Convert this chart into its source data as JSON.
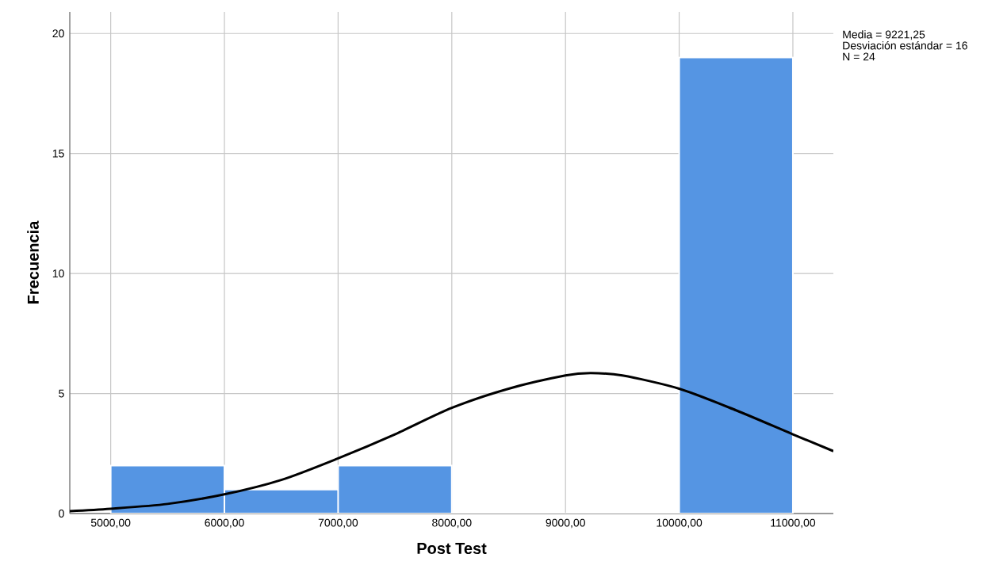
{
  "chart_data": {
    "type": "histogram",
    "xlabel": "Post Test",
    "ylabel": "Frecuencia",
    "bins": [
      5000,
      6000,
      7000,
      8000,
      9000,
      10000,
      11000
    ],
    "values": [
      2,
      1,
      2,
      0,
      0,
      19
    ],
    "color": "#5595e3",
    "series": [
      {
        "type": "line",
        "color": "#000000",
        "x": [
          4640,
          5000,
          5500,
          6000,
          6500,
          7000,
          7500,
          8000,
          8500,
          9000,
          9221,
          9500,
          10000,
          10500,
          11000,
          11356
        ],
        "values": [
          0.1,
          0.2,
          0.4,
          0.8,
          1.4,
          2.3,
          3.3,
          4.4,
          5.2,
          5.75,
          5.85,
          5.75,
          5.2,
          4.3,
          3.3,
          2.6
        ]
      }
    ],
    "xlim": [
      4640,
      11356
    ],
    "ylim": [
      0,
      20.9
    ],
    "xticks": [
      {
        "value": 5000,
        "label": "5000,00"
      },
      {
        "value": 6000,
        "label": "6000,00"
      },
      {
        "value": 7000,
        "label": "7000,00"
      },
      {
        "value": 8000,
        "label": "8000,00"
      },
      {
        "value": 9000,
        "label": "9000,00"
      },
      {
        "value": 10000,
        "label": "10000,00"
      },
      {
        "value": 11000,
        "label": "11000,00"
      }
    ],
    "yticks": [
      0,
      5,
      10,
      15,
      20
    ],
    "grid": true,
    "marker": "none",
    "annotations": [
      "Media = 9221,25",
      "Desviación estándar = 16",
      "N = 24"
    ]
  }
}
